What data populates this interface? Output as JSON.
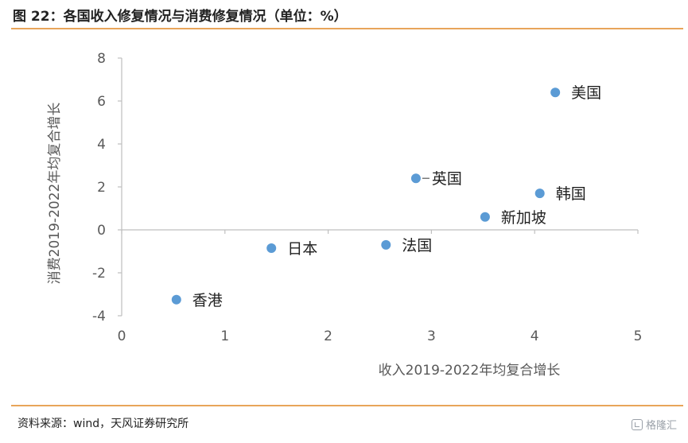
{
  "header": {
    "title": "图 22：各国收入修复情况与消费修复情况（单位：%）"
  },
  "footer": {
    "source": "资料来源：wind，天风证券研究所",
    "watermark": "格隆汇"
  },
  "colors": {
    "accent_rule": "#e8a55a",
    "point": "#5b9bd5",
    "axis": "#bfbfbf"
  },
  "chart_data": {
    "type": "scatter",
    "xlabel": "收入2019-2022年均复合增长",
    "ylabel": "消费2019-2022年均复合增长",
    "xlim": [
      0,
      5
    ],
    "ylim": [
      -4,
      8
    ],
    "xticks": [
      0,
      1,
      2,
      3,
      4,
      5
    ],
    "yticks": [
      -4,
      -2,
      0,
      2,
      4,
      6,
      8
    ],
    "grid": false,
    "legend": "none",
    "points": [
      {
        "label": "美国",
        "x": 4.2,
        "y": 6.4
      },
      {
        "label": "英国",
        "x": 2.85,
        "y": 2.4
      },
      {
        "label": "韩国",
        "x": 4.05,
        "y": 1.7
      },
      {
        "label": "新加坡",
        "x": 3.52,
        "y": 0.6
      },
      {
        "label": "法国",
        "x": 2.56,
        "y": -0.7
      },
      {
        "label": "日本",
        "x": 1.45,
        "y": -0.85
      },
      {
        "label": "香港",
        "x": 0.53,
        "y": -3.25
      }
    ]
  }
}
